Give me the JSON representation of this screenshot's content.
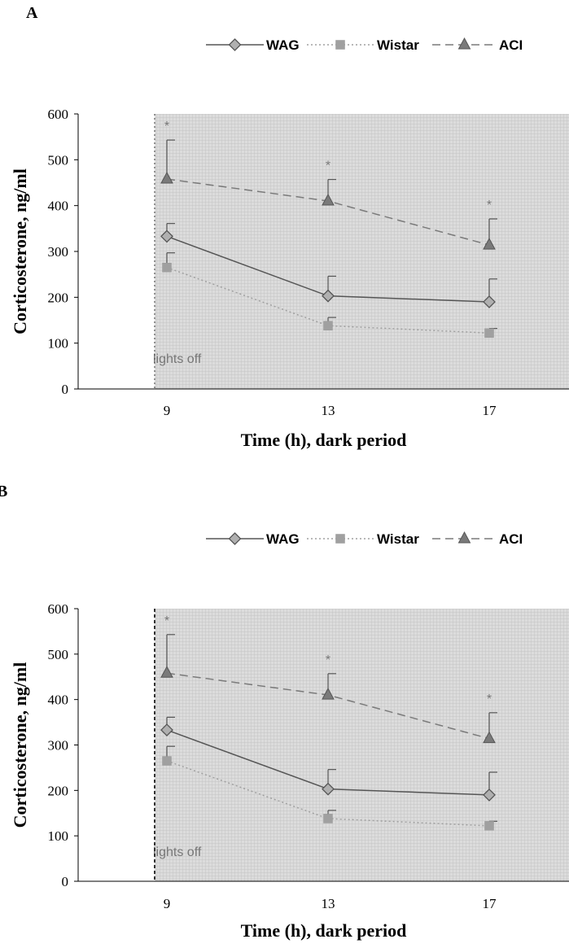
{
  "chart_data": [
    {
      "type": "line",
      "panel_label": "A",
      "xlabel": "Time (h), dark period",
      "ylabel": "Corticosterone, ng/ml",
      "categories": [
        "9",
        "13",
        "17"
      ],
      "ylim": [
        0,
        600
      ],
      "yticks": [
        "0",
        "100",
        "200",
        "300",
        "400",
        "500",
        "600"
      ],
      "shaded_region": "dark period (from lights off)",
      "annotation": "lights off",
      "legend_position": "top",
      "grid": false,
      "series": [
        {
          "name": "WAG",
          "values": [
            333,
            203,
            190
          ],
          "errors": [
            28,
            43,
            50
          ],
          "color": "#555555",
          "marker": "diamond",
          "linestyle": "solid"
        },
        {
          "name": "Wistar",
          "values": [
            265,
            138,
            122
          ],
          "errors": [
            32,
            18,
            10
          ],
          "color": "#a0a0a0",
          "marker": "square",
          "linestyle": "dotted"
        },
        {
          "name": "ACI",
          "values": [
            458,
            410,
            314
          ],
          "errors": [
            85,
            47,
            57
          ],
          "color": "#7a7a7a",
          "marker": "triangle",
          "linestyle": "dashed"
        }
      ],
      "significance": [
        "*",
        "*",
        "*"
      ]
    },
    {
      "type": "line",
      "panel_label": "B",
      "xlabel": "Time (h), dark period",
      "ylabel": "Corticosterone, ng/ml",
      "categories": [
        "9",
        "13",
        "17"
      ],
      "ylim": [
        0,
        600
      ],
      "yticks": [
        "0",
        "100",
        "200",
        "300",
        "400",
        "500",
        "600"
      ],
      "shaded_region": "dark period (from lights off)",
      "annotation": "lights off",
      "legend_position": "top",
      "grid": false,
      "series": [
        {
          "name": "WAG",
          "values": [
            333,
            203,
            190
          ],
          "errors": [
            28,
            43,
            50
          ],
          "color": "#555555",
          "marker": "diamond",
          "linestyle": "solid"
        },
        {
          "name": "Wistar",
          "values": [
            265,
            138,
            122
          ],
          "errors": [
            32,
            18,
            10
          ],
          "color": "#a0a0a0",
          "marker": "square",
          "linestyle": "dotted"
        },
        {
          "name": "ACI",
          "values": [
            458,
            410,
            314
          ],
          "errors": [
            85,
            47,
            57
          ],
          "color": "#7a7a7a",
          "marker": "triangle",
          "linestyle": "dashed"
        }
      ],
      "significance": [
        "*",
        "*",
        "*"
      ]
    }
  ]
}
